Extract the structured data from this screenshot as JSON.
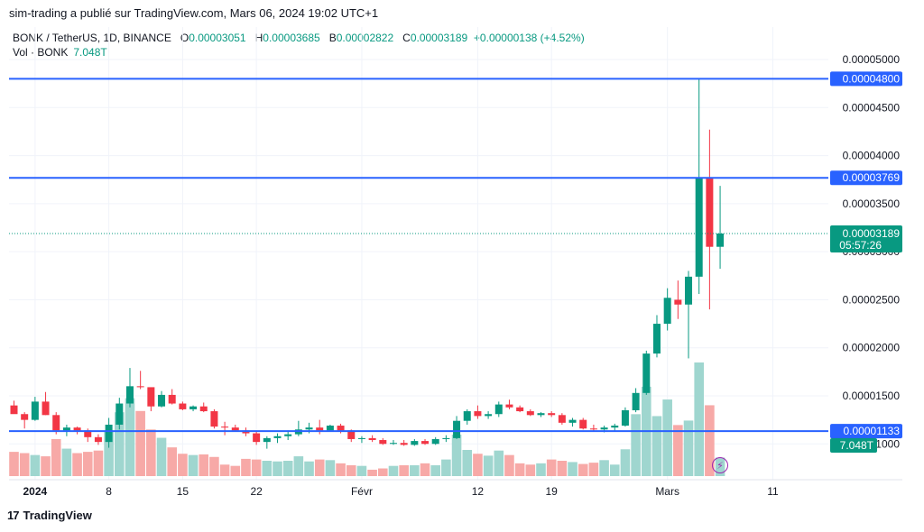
{
  "header": {
    "text": "sim-trading a publié sur TradingView.com, Mars 06, 2024 19:02 UTC+1"
  },
  "legend": {
    "symbol": "BONK / TetherUS, 1D, BINANCE",
    "o_label": "O",
    "o": "0.00003051",
    "h_label": "H",
    "h": "0.00003685",
    "l_label": "B",
    "l": "0.00002822",
    "c_label": "C",
    "c": "0.00003189",
    "change": "+0.00000138 (+4.52%)",
    "vol_label": "Vol · BONK",
    "vol": "7.048T"
  },
  "footer": {
    "brand": "TradingView",
    "logo_mark": "17"
  },
  "colors": {
    "up": "#089981",
    "down": "#f23645",
    "up_vol": "#9fd6cf",
    "down_vol": "#f7a9a7",
    "hline": "#2962ff"
  },
  "chart_data": {
    "type": "candlestick",
    "ylim": [
      4e-06,
      5.4e-05
    ],
    "y_ticks": [
      "0.00005000",
      "0.00004500",
      "0.00004000",
      "0.00003500",
      "0.00003000",
      "0.00002500",
      "0.00002000",
      "0.00001500",
      "0.00001000"
    ],
    "y_tick_values": [
      5e-05,
      4.5e-05,
      4e-05,
      3.5e-05,
      3e-05,
      2.5e-05,
      2e-05,
      1.5e-05,
      1e-05
    ],
    "x_ticks": [
      {
        "label": "2024",
        "index": 2
      },
      {
        "label": "8",
        "index": 9
      },
      {
        "label": "15",
        "index": 16
      },
      {
        "label": "22",
        "index": 23
      },
      {
        "label": "Févr",
        "index": 33
      },
      {
        "label": "12",
        "index": 44
      },
      {
        "label": "19",
        "index": 51
      },
      {
        "label": "Mars",
        "index": 62
      },
      {
        "label": "11",
        "index": 72
      }
    ],
    "candles": [
      [
        1.4e-05,
        1.45e-05,
        1.34e-05,
        1.31e-05
      ],
      [
        1.31e-05,
        1.33e-05,
        1.16e-05,
        1.25e-05
      ],
      [
        1.25e-05,
        1.49e-05,
        1.24e-05,
        1.44e-05
      ],
      [
        1.44e-05,
        1.54e-05,
        1.3e-05,
        1.3e-05
      ],
      [
        1.3e-05,
        1.33e-05,
        1.1e-05,
        1.14e-05
      ],
      [
        1.14e-05,
        1.2e-05,
        1.08e-05,
        1.17e-05
      ],
      [
        1.17e-05,
        1.18e-05,
        1.1e-05,
        1.14e-05
      ],
      [
        1.14e-05,
        1.16e-05,
        1.02e-05,
        1.07e-05
      ],
      [
        1.07e-05,
        1.1e-05,
        9.9e-06,
        1.02e-05
      ],
      [
        1.02e-05,
        1.27e-05,
        9.6e-06,
        1.2e-05
      ],
      [
        1.2e-05,
        1.48e-05,
        1.15e-05,
        1.42e-05
      ],
      [
        1.42e-05,
        1.79e-05,
        1.38e-05,
        1.6e-05
      ],
      [
        1.6e-05,
        1.76e-05,
        1.57e-05,
        1.59e-05
      ],
      [
        1.59e-05,
        1.58e-05,
        1.34e-05,
        1.39e-05
      ],
      [
        1.39e-05,
        1.55e-05,
        1.38e-05,
        1.51e-05
      ],
      [
        1.51e-05,
        1.57e-05,
        1.41e-05,
        1.42e-05
      ],
      [
        1.42e-05,
        1.44e-05,
        1.35e-05,
        1.36e-05
      ],
      [
        1.36e-05,
        1.4e-05,
        1.34e-05,
        1.39e-05
      ],
      [
        1.39e-05,
        1.43e-05,
        1.33e-05,
        1.34e-05
      ],
      [
        1.34e-05,
        1.36e-05,
        1.16e-05,
        1.18e-05
      ],
      [
        1.18e-05,
        1.23e-05,
        1.09e-05,
        1.17e-05
      ],
      [
        1.17e-05,
        1.2e-05,
        1.13e-05,
        1.14e-05
      ],
      [
        1.14e-05,
        1.17e-05,
        1.08e-05,
        1.11e-05
      ],
      [
        1.11e-05,
        1.13e-05,
        9.9e-06,
        1.02e-05
      ],
      [
        1.02e-05,
        1.08e-05,
        9.5e-06,
        1.06e-05
      ],
      [
        1.06e-05,
        1.11e-05,
        1.01e-05,
        1.08e-05
      ],
      [
        1.08e-05,
        1.14e-05,
        1.04e-05,
        1.1e-05
      ],
      [
        1.1e-05,
        1.24e-05,
        1.08e-05,
        1.15e-05
      ],
      [
        1.15e-05,
        1.22e-05,
        1.11e-05,
        1.17e-05
      ],
      [
        1.17e-05,
        1.25e-05,
        1.1e-05,
        1.14e-05
      ],
      [
        1.14e-05,
        1.2e-05,
        1.13e-05,
        1.19e-05
      ],
      [
        1.19e-05,
        1.21e-05,
        1.11e-05,
        1.14e-05
      ],
      [
        1.14e-05,
        1.15e-05,
        1.02e-05,
        1.05e-05
      ],
      [
        1.05e-05,
        1.08e-05,
        1.01e-05,
        1.06e-05
      ],
      [
        1.06e-05,
        1.09e-05,
        1.02e-05,
        1.04e-05
      ],
      [
        1.04e-05,
        1.06e-05,
        9.9e-06,
        1e-05
      ],
      [
        1e-05,
        1.04e-05,
        9.9e-06,
        1.01e-05
      ],
      [
        1.01e-05,
        1.04e-05,
        9.8e-06,
        9.9e-06
      ],
      [
        9.9e-06,
        1.05e-05,
        9.8e-06,
        1.03e-05
      ],
      [
        1.03e-05,
        1.05e-05,
        9.9e-06,
        1e-05
      ],
      [
        1e-05,
        1.07e-05,
        9.9e-06,
        1.05e-05
      ],
      [
        1.05e-05,
        1.09e-05,
        1.02e-05,
        1.06e-05
      ],
      [
        1.06e-05,
        1.29e-05,
        1.05e-05,
        1.24e-05
      ],
      [
        1.24e-05,
        1.36e-05,
        1.2e-05,
        1.34e-05
      ],
      [
        1.34e-05,
        1.4e-05,
        1.26e-05,
        1.29e-05
      ],
      [
        1.29e-05,
        1.34e-05,
        1.26e-05,
        1.31e-05
      ],
      [
        1.31e-05,
        1.44e-05,
        1.28e-05,
        1.41e-05
      ],
      [
        1.41e-05,
        1.46e-05,
        1.36e-05,
        1.38e-05
      ],
      [
        1.38e-05,
        1.4e-05,
        1.33e-05,
        1.34e-05
      ],
      [
        1.34e-05,
        1.36e-05,
        1.29e-05,
        1.3e-05
      ],
      [
        1.3e-05,
        1.33e-05,
        1.28e-05,
        1.32e-05
      ],
      [
        1.32e-05,
        1.34e-05,
        1.28e-05,
        1.3e-05
      ],
      [
        1.3e-05,
        1.32e-05,
        1.2e-05,
        1.22e-05
      ],
      [
        1.22e-05,
        1.27e-05,
        1.18e-05,
        1.25e-05
      ],
      [
        1.25e-05,
        1.27e-05,
        1.15e-05,
        1.16e-05
      ],
      [
        1.16e-05,
        1.2e-05,
        1.13e-05,
        1.15e-05
      ],
      [
        1.15e-05,
        1.19e-05,
        1.12e-05,
        1.17e-05
      ],
      [
        1.17e-05,
        1.21e-05,
        1.14e-05,
        1.19e-05
      ],
      [
        1.19e-05,
        1.38e-05,
        1.18e-05,
        1.35e-05
      ],
      [
        1.35e-05,
        1.58e-05,
        1.33e-05,
        1.53e-05
      ],
      [
        1.53e-05,
        1.97e-05,
        1.51e-05,
        1.94e-05
      ],
      [
        1.94e-05,
        2.34e-05,
        1.9e-05,
        2.25e-05
      ],
      [
        2.25e-05,
        2.62e-05,
        2.18e-05,
        2.52e-05
      ],
      [
        2.5e-05,
        2.7e-05,
        2.3e-05,
        2.45e-05
      ],
      [
        2.45e-05,
        2.8e-05,
        1.89e-05,
        2.74e-05
      ],
      [
        2.74e-05,
        4.8e-05,
        2.56e-05,
        3.769e-05
      ],
      [
        3.769e-05,
        4.27e-05,
        2.4e-05,
        3.051e-05
      ],
      [
        3.051e-05,
        3.685e-05,
        2.822e-05,
        3.189e-05
      ]
    ],
    "volumes": [
      0.38,
      0.36,
      0.33,
      0.31,
      0.58,
      0.43,
      0.36,
      0.38,
      0.4,
      0.71,
      1.0,
      1.22,
      1.02,
      0.73,
      0.6,
      0.45,
      0.35,
      0.33,
      0.34,
      0.3,
      0.18,
      0.16,
      0.27,
      0.26,
      0.24,
      0.23,
      0.24,
      0.31,
      0.23,
      0.26,
      0.25,
      0.2,
      0.17,
      0.16,
      0.1,
      0.12,
      0.16,
      0.17,
      0.17,
      0.2,
      0.17,
      0.26,
      0.65,
      0.41,
      0.35,
      0.32,
      0.4,
      0.33,
      0.2,
      0.18,
      0.2,
      0.26,
      0.24,
      0.22,
      0.19,
      0.21,
      0.25,
      0.18,
      0.42,
      0.97,
      1.4,
      0.94,
      1.2,
      0.8,
      0.87,
      1.78,
      1.11,
      0.29
    ],
    "volume_ylim": [
      0,
      1.78
    ],
    "price_lines": [
      {
        "value": 4.8e-05,
        "label": "0.00004800"
      },
      {
        "value": 3.769e-05,
        "label": "0.00003769"
      },
      {
        "value": 1.133e-05,
        "label": "0.00001133"
      }
    ],
    "last_price": {
      "value": 3.189e-05,
      "label": "0.00003189",
      "countdown": "05:57:26"
    },
    "volume_badge": "7.048T"
  }
}
